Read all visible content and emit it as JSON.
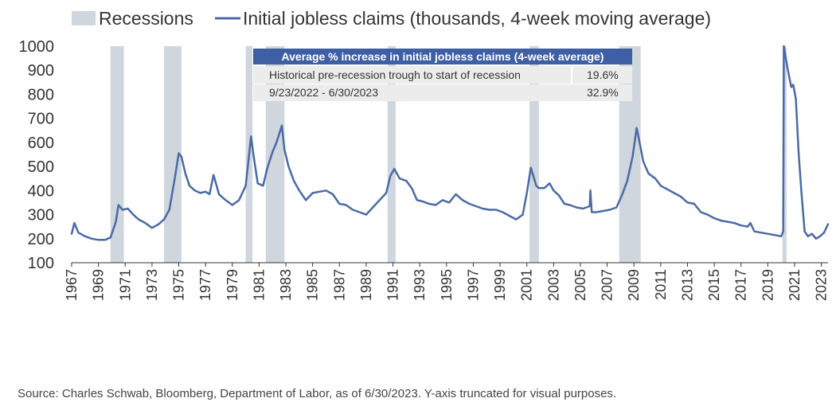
{
  "source_note": "Source: Charles Schwab, Bloomberg, Department of Labor, as of 6/30/2023. Y-axis truncated for visual purposes.",
  "colors": {
    "line": "#4a6aa5",
    "recession": "#cfd6dd",
    "table_header": "#3e5fa4",
    "table_row": "#ececec"
  },
  "table": {
    "title": "Average % increase in initial jobless claims (4-week average)",
    "rows": [
      {
        "label": "Historical pre-recession trough to start of recession",
        "value": "19.6%"
      },
      {
        "label": "9/23/2022 - 6/30/2023",
        "value": "32.9%"
      }
    ]
  },
  "chart_data": {
    "type": "line",
    "title": "",
    "xlabel": "",
    "ylabel": "",
    "legend": [
      "Recessions",
      "Initial jobless claims (thousands, 4-week moving average)"
    ],
    "legend_position": "top-left",
    "ylim": [
      100,
      1000
    ],
    "yticks": [
      "100",
      "200",
      "300",
      "400",
      "500",
      "600",
      "700",
      "800",
      "900",
      "1000"
    ],
    "xlim": [
      1967.0,
      2023.5
    ],
    "xticks": [
      "1967",
      "1969",
      "1971",
      "1973",
      "1975",
      "1977",
      "1979",
      "1981",
      "1983",
      "1985",
      "1987",
      "1989",
      "1991",
      "1993",
      "1995",
      "1997",
      "1999",
      "2001",
      "2003",
      "2005",
      "2007",
      "2009",
      "2011",
      "2013",
      "2015",
      "2017",
      "2019",
      "2021",
      "2023"
    ],
    "grid": false,
    "recessions": [
      {
        "start": 1969.9,
        "end": 1970.9
      },
      {
        "start": 1973.9,
        "end": 1975.2
      },
      {
        "start": 1980.0,
        "end": 1980.5
      },
      {
        "start": 1981.5,
        "end": 1982.9
      },
      {
        "start": 1990.6,
        "end": 1991.2
      },
      {
        "start": 2001.2,
        "end": 2001.9
      },
      {
        "start": 2007.9,
        "end": 2009.5
      },
      {
        "start": 2020.1,
        "end": 2020.4
      }
    ],
    "series": [
      {
        "name": "Initial jobless claims (thousands, 4-week moving average)",
        "x": [
          1967.0,
          1967.2,
          1967.5,
          1968.0,
          1968.5,
          1969.0,
          1969.5,
          1969.9,
          1970.3,
          1970.5,
          1970.8,
          1971.2,
          1971.6,
          1972.0,
          1972.5,
          1973.0,
          1973.5,
          1973.9,
          1974.3,
          1974.7,
          1975.0,
          1975.2,
          1975.5,
          1975.8,
          1976.2,
          1976.6,
          1977.0,
          1977.3,
          1977.6,
          1978.0,
          1978.5,
          1979.0,
          1979.5,
          1980.0,
          1980.2,
          1980.4,
          1980.6,
          1980.9,
          1981.3,
          1981.6,
          1982.0,
          1982.3,
          1982.7,
          1982.9,
          1983.2,
          1983.6,
          1984.0,
          1984.5,
          1985.0,
          1985.5,
          1986.0,
          1986.5,
          1987.0,
          1987.5,
          1988.0,
          1988.5,
          1989.0,
          1989.5,
          1990.0,
          1990.5,
          1990.8,
          1991.1,
          1991.5,
          1992.0,
          1992.4,
          1992.8,
          1993.2,
          1993.7,
          1994.2,
          1994.7,
          1995.2,
          1995.7,
          1996.2,
          1996.7,
          1997.2,
          1997.7,
          1998.2,
          1998.7,
          1999.2,
          1999.7,
          2000.2,
          2000.7,
          2001.0,
          2001.3,
          2001.7,
          2001.9,
          2002.3,
          2002.7,
          2003.0,
          2003.4,
          2003.8,
          2004.2,
          2004.7,
          2005.2,
          2005.7,
          2005.75,
          2005.85,
          2006.2,
          2006.7,
          2007.2,
          2007.7,
          2008.1,
          2008.5,
          2008.9,
          2009.2,
          2009.35,
          2009.7,
          2010.1,
          2010.6,
          2011.0,
          2011.5,
          2012.0,
          2012.5,
          2013.0,
          2013.5,
          2014.0,
          2014.5,
          2015.0,
          2015.5,
          2016.0,
          2016.5,
          2017.0,
          2017.5,
          2017.7,
          2018.0,
          2018.5,
          2019.0,
          2019.5,
          2020.0,
          2020.15,
          2020.2,
          2020.35,
          2020.5,
          2020.75,
          2020.9,
          2021.1,
          2021.3,
          2021.5,
          2021.75,
          2022.0,
          2022.3,
          2022.6,
          2022.9,
          2023.2,
          2023.5
        ],
        "values": [
          220,
          265,
          225,
          210,
          200,
          195,
          195,
          205,
          270,
          340,
          320,
          325,
          300,
          280,
          265,
          245,
          260,
          280,
          320,
          450,
          555,
          540,
          470,
          420,
          400,
          390,
          395,
          385,
          465,
          385,
          360,
          340,
          360,
          420,
          520,
          625,
          540,
          430,
          420,
          490,
          560,
          600,
          670,
          570,
          500,
          440,
          400,
          360,
          390,
          395,
          400,
          385,
          345,
          340,
          320,
          310,
          300,
          330,
          360,
          390,
          460,
          490,
          450,
          440,
          410,
          360,
          355,
          345,
          340,
          360,
          350,
          385,
          360,
          345,
          335,
          325,
          320,
          320,
          310,
          295,
          280,
          300,
          390,
          495,
          420,
          410,
          410,
          430,
          400,
          380,
          345,
          340,
          330,
          325,
          335,
          400,
          310,
          310,
          315,
          320,
          330,
          380,
          440,
          540,
          660,
          620,
          520,
          470,
          450,
          420,
          405,
          390,
          375,
          350,
          345,
          310,
          300,
          285,
          275,
          270,
          265,
          255,
          250,
          265,
          230,
          225,
          220,
          215,
          210,
          230,
          1000,
          950,
          900,
          830,
          840,
          780,
          560,
          400,
          230,
          210,
          220,
          200,
          210,
          225,
          260
        ]
      }
    ]
  }
}
